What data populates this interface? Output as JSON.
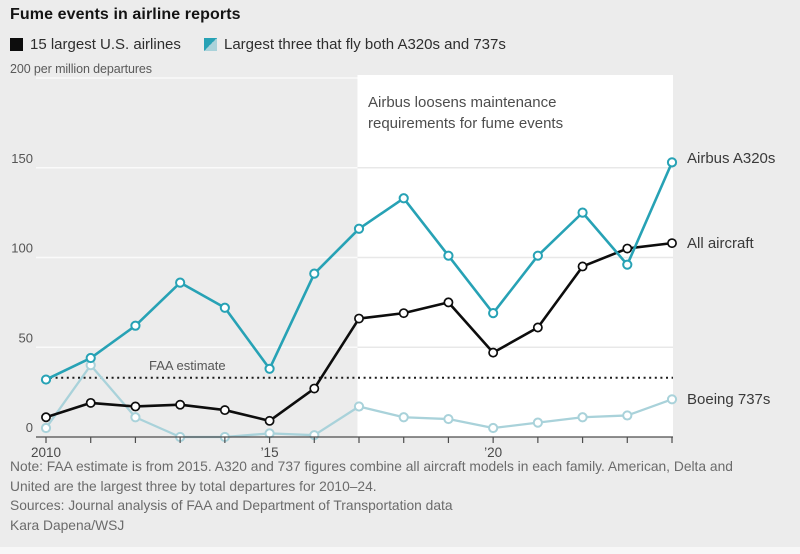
{
  "title": "Fume events in airline reports",
  "legend": [
    {
      "label": "15 largest U.S. airlines",
      "swatch": "black-square"
    },
    {
      "label": "Largest three that fly both A320s and 737s",
      "swatch": "teal-split-square"
    }
  ],
  "unit_label": "200 per million departures",
  "annotation": {
    "lines": [
      "Airbus loosens maintenance",
      "requirements for fume events"
    ]
  },
  "right_labels": [
    "Airbus A320s",
    "All aircraft",
    "Boeing 737s"
  ],
  "footer": {
    "note_lines": [
      "Note: FAA estimate is from 2015. A320 and 737 figures combine all aircraft models in each family. American, Delta and",
      "United are the largest three by total departures for 2010–24."
    ],
    "sources": "Sources: Journal analysis of FAA and Department of Transportation data",
    "credit": "Kara Dapena/WSJ"
  },
  "colors": {
    "background": "#ececec",
    "highlight": "#ffffff",
    "teal": "#27a2b5",
    "light_teal": "#a9d2da",
    "black": "#0d0d0d",
    "grid_on_gray": "#fafafa",
    "grid_on_white": "#e8e8e8",
    "axis": "#4d4d4d",
    "tick_text": "#555555",
    "marker_fill": "#ffffff"
  },
  "chart_data": {
    "type": "line",
    "x": [
      2010,
      2011,
      2012,
      2013,
      2014,
      2015,
      2016,
      2017,
      2018,
      2019,
      2020,
      2021,
      2022,
      2023,
      2024
    ],
    "series": [
      {
        "name": "Boeing 737s",
        "color_key": "light_teal",
        "values": [
          5,
          40,
          11,
          0,
          0,
          2,
          1,
          17,
          11,
          10,
          5,
          8,
          11,
          12,
          21
        ]
      },
      {
        "name": "All aircraft",
        "color_key": "black",
        "values": [
          11,
          19,
          17,
          18,
          15,
          9,
          27,
          66,
          69,
          75,
          47,
          61,
          95,
          105,
          108
        ]
      },
      {
        "name": "Airbus A320s",
        "color_key": "teal",
        "values": [
          32,
          44,
          62,
          86,
          72,
          38,
          91,
          116,
          133,
          101,
          69,
          101,
          125,
          96,
          153
        ]
      }
    ],
    "title": "Fume events in airline reports",
    "ylabel": "per million departures",
    "ylim": [
      0,
      200
    ],
    "yticks": [
      0,
      50,
      100,
      150
    ],
    "ytick_top": 200,
    "xticks": [
      {
        "year": 2010,
        "label": "2010"
      },
      {
        "year": 2015,
        "label": "’15"
      },
      {
        "year": 2020,
        "label": "’20"
      }
    ],
    "faa_estimate": {
      "value": 33,
      "label": "FAA estimate"
    },
    "highlight_region": {
      "from_year": 2017,
      "to_year": 2024
    },
    "grid": true,
    "legend_position": "top"
  }
}
